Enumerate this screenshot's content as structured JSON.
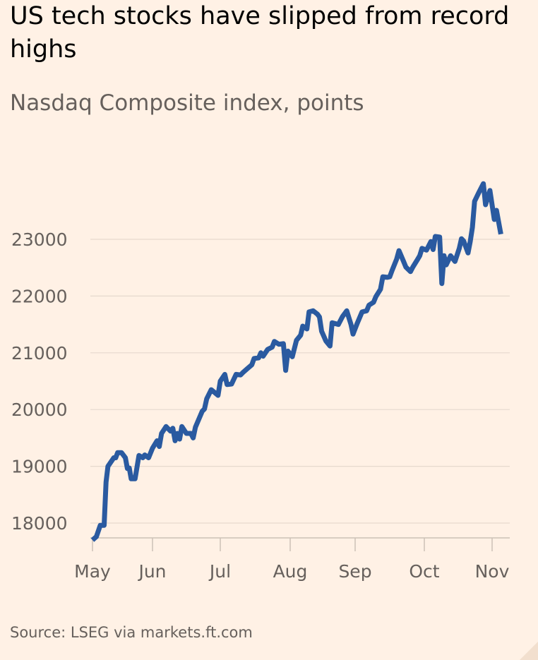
{
  "title": "US tech stocks have slipped from record highs",
  "subtitle": "Nasdaq Composite index, points",
  "source": "Source: LSEG via markets.ft.com",
  "colors": {
    "background": "#fff1e5",
    "line": "#2a5aa0",
    "text": "#66605c",
    "grid": "#e6d9ce"
  },
  "chart_data": {
    "type": "line",
    "title": "US tech stocks have slipped from record highs",
    "subtitle": "Nasdaq Composite index, points",
    "ylabel": "",
    "xlabel": "",
    "ylim": [
      17740,
      24000
    ],
    "yticks": [
      18000,
      19000,
      20000,
      21000,
      22000,
      23000
    ],
    "ytick_labels": [
      "18000",
      "19000",
      "20000",
      "21000",
      "22000",
      "23000"
    ],
    "xticks": [
      "2025-05-01",
      "2025-06-01",
      "2025-07-01",
      "2025-08-01",
      "2025-09-01",
      "2025-10-01",
      "2025-11-01"
    ],
    "xtick_labels": [
      "May",
      "Jun",
      "Jul",
      "Aug",
      "Sep",
      "Oct",
      "Nov"
    ],
    "grid": true,
    "series": [
      {
        "points": [
          [
            "2025-05-01",
            17700
          ],
          [
            "2025-05-03",
            17760
          ],
          [
            "2025-05-05",
            17960
          ],
          [
            "2025-05-07",
            17960
          ],
          [
            "2025-05-08",
            18720
          ],
          [
            "2025-05-09",
            19000
          ],
          [
            "2025-05-12",
            19150
          ],
          [
            "2025-05-13",
            19150
          ],
          [
            "2025-05-14",
            19240
          ],
          [
            "2025-05-16",
            19240
          ],
          [
            "2025-05-18",
            19150
          ],
          [
            "2025-05-19",
            18960
          ],
          [
            "2025-05-20",
            18970
          ],
          [
            "2025-05-21",
            18780
          ],
          [
            "2025-05-23",
            18780
          ],
          [
            "2025-05-25",
            19190
          ],
          [
            "2025-05-27",
            19150
          ],
          [
            "2025-05-28",
            19200
          ],
          [
            "2025-05-30",
            19150
          ],
          [
            "2025-06-01",
            19320
          ],
          [
            "2025-06-03",
            19450
          ],
          [
            "2025-06-04",
            19350
          ],
          [
            "2025-06-05",
            19580
          ],
          [
            "2025-06-07",
            19700
          ],
          [
            "2025-06-09",
            19620
          ],
          [
            "2025-06-10",
            19670
          ],
          [
            "2025-06-11",
            19450
          ],
          [
            "2025-06-12",
            19580
          ],
          [
            "2025-06-13",
            19480
          ],
          [
            "2025-06-14",
            19700
          ],
          [
            "2025-06-16",
            19580
          ],
          [
            "2025-06-17",
            19580
          ],
          [
            "2025-06-18",
            19580
          ],
          [
            "2025-06-19",
            19500
          ],
          [
            "2025-06-20",
            19690
          ],
          [
            "2025-06-23",
            19970
          ],
          [
            "2025-06-24",
            20010
          ],
          [
            "2025-06-25",
            20190
          ],
          [
            "2025-06-27",
            20350
          ],
          [
            "2025-06-30",
            20250
          ],
          [
            "2025-07-01",
            20500
          ],
          [
            "2025-07-03",
            20620
          ],
          [
            "2025-07-04",
            20440
          ],
          [
            "2025-07-06",
            20450
          ],
          [
            "2025-07-08",
            20620
          ],
          [
            "2025-07-10",
            20610
          ],
          [
            "2025-07-11",
            20650
          ],
          [
            "2025-07-13",
            20720
          ],
          [
            "2025-07-15",
            20790
          ],
          [
            "2025-07-16",
            20900
          ],
          [
            "2025-07-18",
            20910
          ],
          [
            "2025-07-19",
            21000
          ],
          [
            "2025-07-20",
            20940
          ],
          [
            "2025-07-22",
            21060
          ],
          [
            "2025-07-24",
            21100
          ],
          [
            "2025-07-25",
            21200
          ],
          [
            "2025-07-27",
            21150
          ],
          [
            "2025-07-29",
            21160
          ],
          [
            "2025-07-30",
            20690
          ],
          [
            "2025-07-31",
            21030
          ],
          [
            "2025-08-02",
            20930
          ],
          [
            "2025-08-04",
            21220
          ],
          [
            "2025-08-06",
            21310
          ],
          [
            "2025-08-07",
            21470
          ],
          [
            "2025-08-09",
            21420
          ],
          [
            "2025-08-10",
            21720
          ],
          [
            "2025-08-12",
            21740
          ],
          [
            "2025-08-14",
            21680
          ],
          [
            "2025-08-15",
            21630
          ],
          [
            "2025-08-16",
            21380
          ],
          [
            "2025-08-18",
            21210
          ],
          [
            "2025-08-20",
            21120
          ],
          [
            "2025-08-21",
            21530
          ],
          [
            "2025-08-24",
            21500
          ],
          [
            "2025-08-26",
            21640
          ],
          [
            "2025-08-28",
            21740
          ],
          [
            "2025-08-30",
            21500
          ],
          [
            "2025-08-31",
            21330
          ],
          [
            "2025-09-02",
            21530
          ],
          [
            "2025-09-04",
            21720
          ],
          [
            "2025-09-06",
            21740
          ],
          [
            "2025-09-07",
            21840
          ],
          [
            "2025-09-09",
            21890
          ],
          [
            "2025-09-10",
            21990
          ],
          [
            "2025-09-12",
            22120
          ],
          [
            "2025-09-13",
            22340
          ],
          [
            "2025-09-15",
            22330
          ],
          [
            "2025-09-16",
            22340
          ],
          [
            "2025-09-17",
            22450
          ],
          [
            "2025-09-19",
            22650
          ],
          [
            "2025-09-20",
            22800
          ],
          [
            "2025-09-22",
            22610
          ],
          [
            "2025-09-23",
            22510
          ],
          [
            "2025-09-25",
            22430
          ],
          [
            "2025-09-26",
            22510
          ],
          [
            "2025-09-28",
            22640
          ],
          [
            "2025-09-29",
            22710
          ],
          [
            "2025-09-30",
            22840
          ],
          [
            "2025-10-02",
            22810
          ],
          [
            "2025-10-04",
            22960
          ],
          [
            "2025-10-05",
            22820
          ],
          [
            "2025-10-06",
            23050
          ],
          [
            "2025-10-08",
            23040
          ],
          [
            "2025-10-09",
            22220
          ],
          [
            "2025-10-10",
            22710
          ],
          [
            "2025-10-11",
            22550
          ],
          [
            "2025-10-13",
            22710
          ],
          [
            "2025-10-15",
            22610
          ],
          [
            "2025-10-17",
            22840
          ],
          [
            "2025-10-18",
            23010
          ],
          [
            "2025-10-19",
            22970
          ],
          [
            "2025-10-21",
            22760
          ],
          [
            "2025-10-22",
            22960
          ],
          [
            "2025-10-23",
            23210
          ],
          [
            "2025-10-24",
            23670
          ],
          [
            "2025-10-26",
            23830
          ],
          [
            "2025-10-28",
            23980
          ],
          [
            "2025-10-29",
            23610
          ],
          [
            "2025-10-31",
            23860
          ],
          [
            "2025-11-02",
            23350
          ],
          [
            "2025-11-03",
            23510
          ],
          [
            "2025-11-05",
            23090
          ]
        ]
      }
    ]
  }
}
